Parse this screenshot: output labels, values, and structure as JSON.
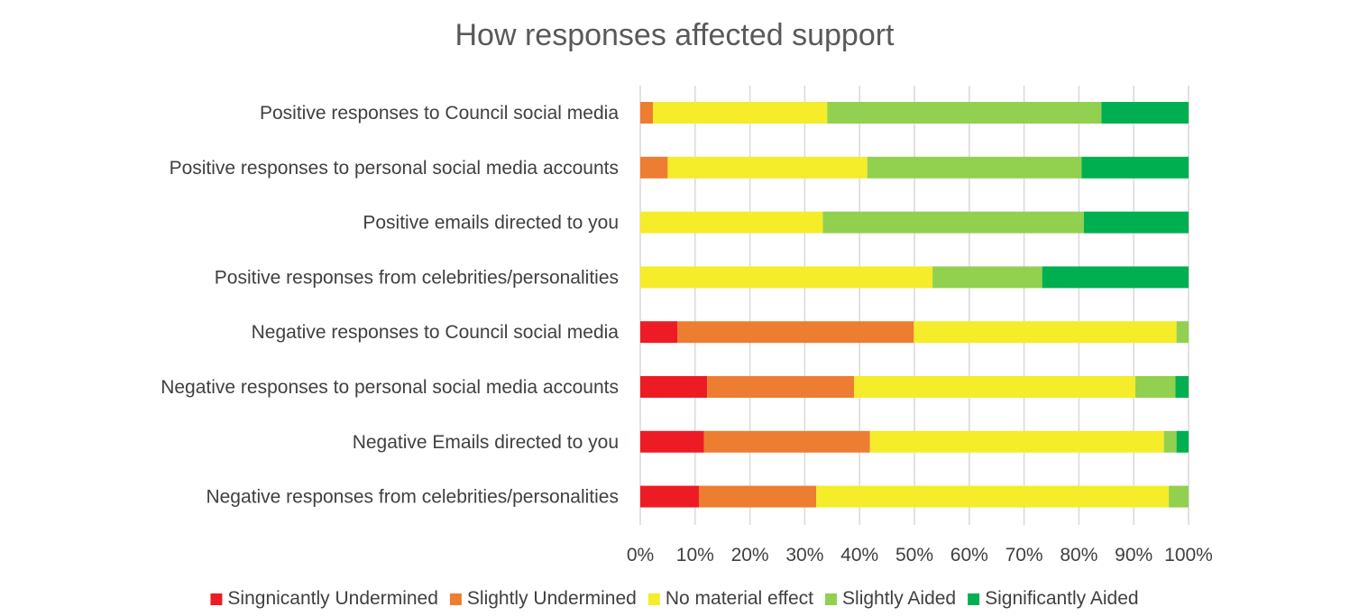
{
  "chart_data": {
    "type": "bar",
    "orientation": "horizontal",
    "stacked": true,
    "title": "How responses affected support",
    "xlabel": "",
    "ylabel": "",
    "xlim": [
      0,
      100
    ],
    "x_ticks": [
      "0%",
      "10%",
      "20%",
      "30%",
      "40%",
      "50%",
      "60%",
      "70%",
      "80%",
      "90%",
      "100%"
    ],
    "grid": "vertical",
    "legend_position": "bottom",
    "categories": [
      "Positive responses to Council social media",
      "Positive responses to personal social media accounts",
      "Positive emails directed to you",
      "Positive responses from celebrities/personalities",
      "Negative responses to Council social media",
      "Negative responses to personal social media accounts",
      "Negative Emails directed to you",
      "Negative responses from celebrities/personalities"
    ],
    "series": [
      {
        "name": "Singnicantly Undermined",
        "color": "#ed1c24",
        "values": [
          0,
          0,
          0,
          0,
          6.8,
          12.2,
          11.6,
          10.7
        ]
      },
      {
        "name": "Slightly Undermined",
        "color": "#ed7d31",
        "values": [
          2.3,
          5.0,
          0,
          0,
          43.1,
          26.8,
          30.3,
          21.4
        ]
      },
      {
        "name": "No material effect",
        "color": "#f5ec2a",
        "values": [
          31.8,
          36.4,
          33.3,
          53.3,
          47.9,
          51.3,
          53.6,
          64.3
        ]
      },
      {
        "name": "Slightly Aided",
        "color": "#92d050",
        "values": [
          50.0,
          39.1,
          47.6,
          20.0,
          2.2,
          7.3,
          2.3,
          3.6
        ]
      },
      {
        "name": "Significantly Aided",
        "color": "#00b050",
        "values": [
          15.9,
          19.5,
          19.1,
          26.7,
          0,
          2.4,
          2.2,
          0
        ]
      }
    ]
  }
}
